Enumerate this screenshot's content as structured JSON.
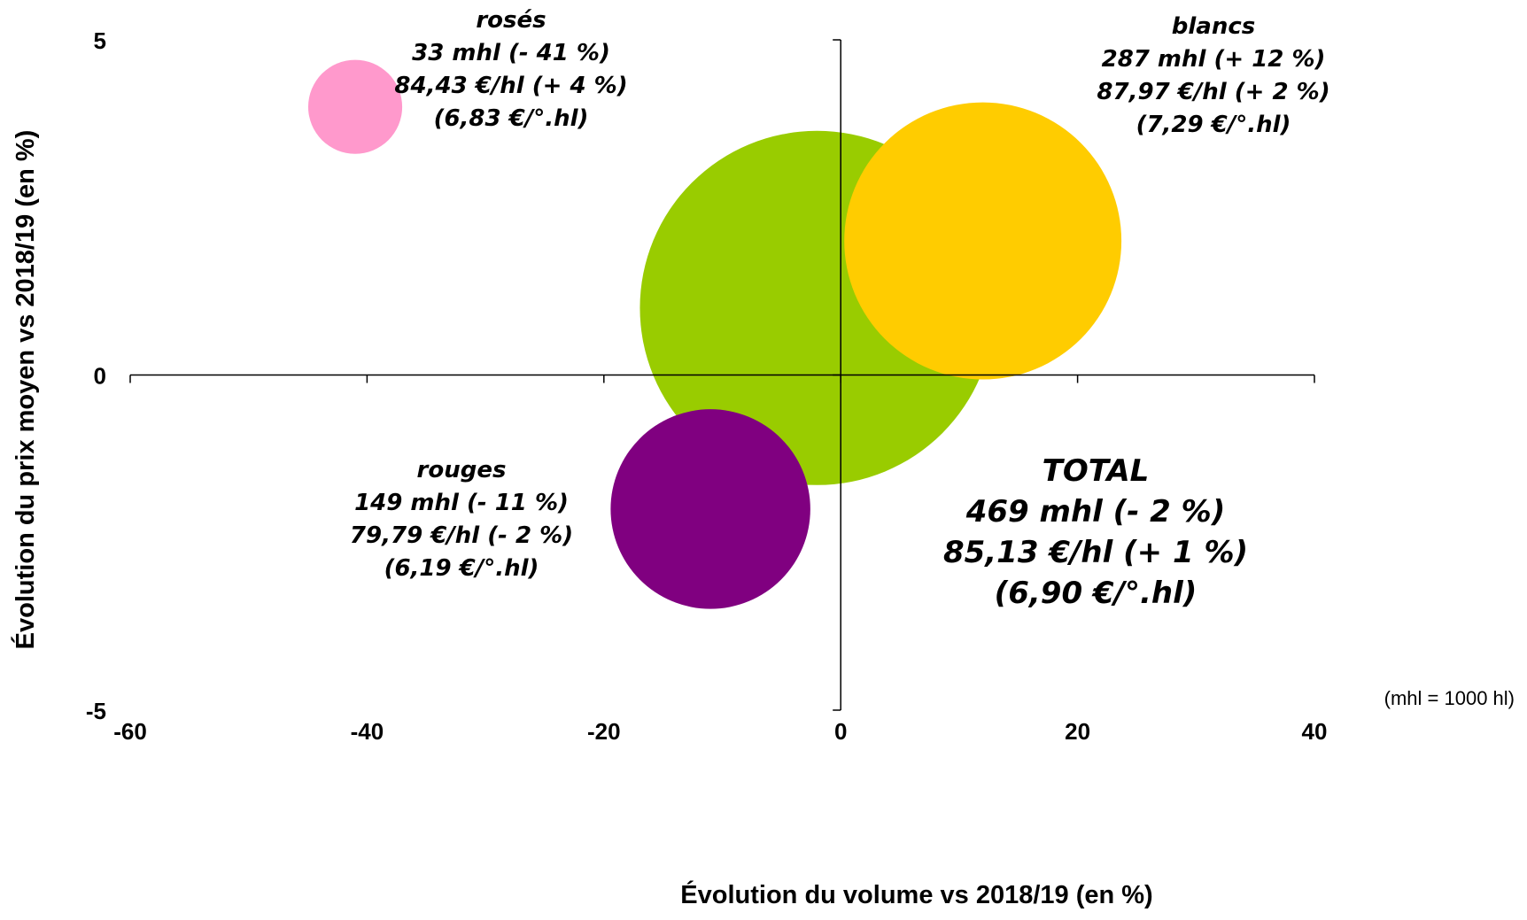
{
  "chart_data": {
    "type": "bubble",
    "xlabel": "Évolution du volume vs 2018/19 (en %)",
    "ylabel": "Évolution du prix moyen vs 2018/19 (en %)",
    "xlim": [
      -60,
      40
    ],
    "ylim": [
      -5,
      5
    ],
    "x_ticks": [
      "-60",
      "-40",
      "-20",
      "0",
      "20",
      "40"
    ],
    "y_ticks": [
      "-5",
      "0",
      "5"
    ],
    "note": "(mhl = 1000 hl)",
    "series": [
      {
        "name": "TOTAL",
        "x": -2,
        "y": 1,
        "size": 469,
        "color": "#99CC00",
        "labels": [
          "TOTAL",
          "469 mhl (- 2 %)",
          "85,13 €/hl (+ 1 %)",
          "(6,90 €/°.hl)"
        ]
      },
      {
        "name": "blancs",
        "x": 12,
        "y": 2,
        "size": 287,
        "color": "#FFCC00",
        "labels": [
          "blancs",
          "287 mhl (+ 12 %)",
          "87,97 €/hl (+ 2 %)",
          "(7,29 €/°.hl)"
        ]
      },
      {
        "name": "rouges",
        "x": -11,
        "y": -2,
        "size": 149,
        "color": "#800080",
        "labels": [
          "rouges",
          "149 mhl (- 11 %)",
          "79,79 €/hl (- 2 %)",
          "(6,19 €/°.hl)"
        ]
      },
      {
        "name": "rosés",
        "x": -41,
        "y": 4,
        "size": 33,
        "color": "#FF99CC",
        "labels": [
          "rosés",
          "33 mhl (- 41 %)",
          "84,43 €/hl (+ 4 %)",
          "(6,83 €/°.hl)"
        ]
      }
    ]
  }
}
